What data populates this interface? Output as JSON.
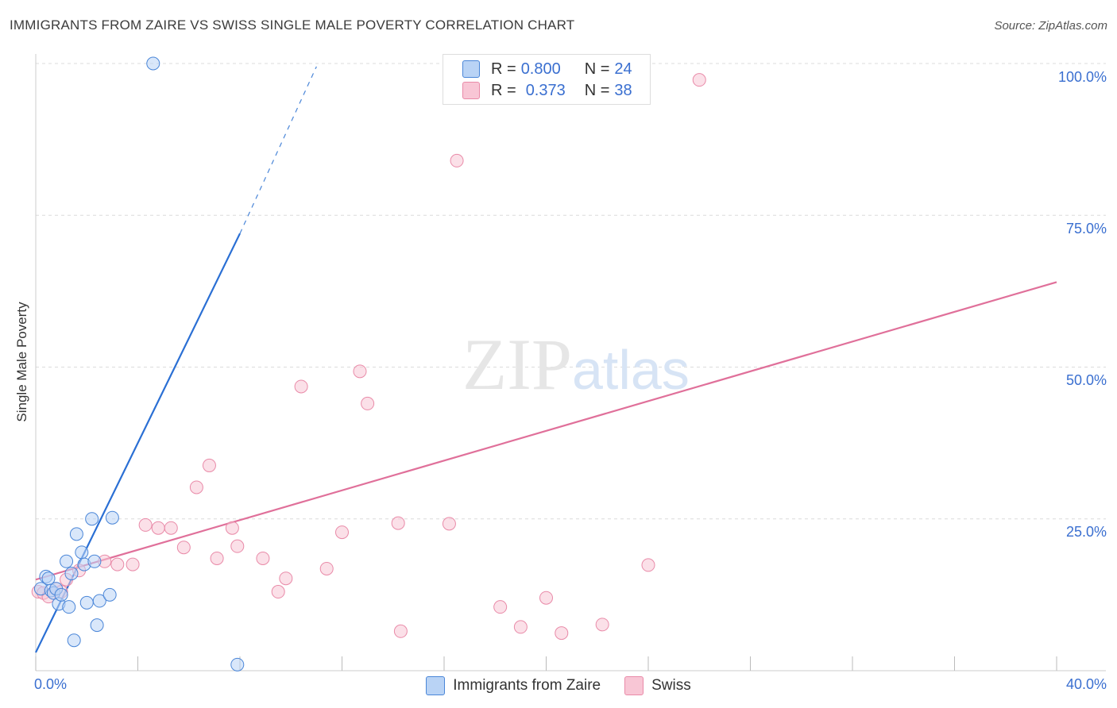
{
  "title": "IMMIGRANTS FROM ZAIRE VS SWISS SINGLE MALE POVERTY CORRELATION CHART",
  "source": "Source: ZipAtlas.com",
  "colors": {
    "blue": "#4a86d8",
    "blue_fill": "#b9d3f5",
    "blue_line": "#2a6fd4",
    "pink": "#e98aa8",
    "pink_fill": "#f8c6d5",
    "pink_line": "#e0709a",
    "axis_text": "#3a6fd0"
  },
  "legend": {
    "series1": {
      "r_label": "R = ",
      "r_value": "0.800",
      "n_label": "N = ",
      "n_value": "24"
    },
    "series2": {
      "r_label": "R = ",
      "r_value": "0.373",
      "n_label": "N = ",
      "n_value": "38"
    }
  },
  "bottom_legend": {
    "series1": "Immigrants from Zaire",
    "series2": "Swiss"
  },
  "watermark": {
    "part1": "ZIP",
    "part2": "atlas"
  },
  "chart_data": {
    "type": "scatter",
    "title": "IMMIGRANTS FROM ZAIRE VS SWISS SINGLE MALE POVERTY CORRELATION CHART",
    "xlabel": "",
    "ylabel": "Single Male Poverty",
    "xlim": [
      0,
      40
    ],
    "ylim": [
      0,
      100
    ],
    "x_tick_labels": [
      "0.0%",
      "40.0%"
    ],
    "y_tick_labels": [
      "100.0%",
      "75.0%",
      "50.0%",
      "25.0%"
    ],
    "y_ticks": [
      100,
      75,
      50,
      25
    ],
    "grid": true,
    "series": [
      {
        "name": "Immigrants from Zaire",
        "x": [
          0.2,
          0.4,
          0.5,
          0.6,
          0.7,
          0.8,
          0.9,
          1.0,
          1.2,
          1.3,
          1.4,
          1.5,
          1.6,
          1.8,
          1.9,
          2.0,
          2.2,
          2.3,
          2.4,
          2.5,
          2.9,
          3.0,
          4.6,
          7.9
        ],
        "y": [
          13.5,
          15.5,
          15.2,
          13.2,
          12.8,
          13.5,
          11.0,
          12.5,
          18.0,
          10.5,
          16.0,
          5.0,
          22.5,
          19.5,
          17.5,
          11.2,
          25.0,
          18.0,
          7.5,
          11.5,
          12.5,
          25.2,
          100.0,
          1.0
        ],
        "trend": {
          "x": [
            0.0,
            8.0
          ],
          "y": [
            3.0,
            72.0
          ],
          "dashed_to": {
            "x": 11.0,
            "y": 99.5
          }
        }
      },
      {
        "name": "Swiss",
        "x": [
          0.1,
          0.3,
          0.5,
          0.8,
          1.0,
          1.2,
          1.7,
          2.7,
          3.2,
          3.8,
          4.3,
          4.8,
          5.3,
          5.8,
          6.3,
          6.8,
          7.1,
          7.7,
          7.9,
          8.9,
          9.5,
          9.8,
          10.4,
          11.4,
          12.0,
          12.7,
          13.0,
          14.2,
          14.3,
          16.2,
          16.5,
          18.2,
          19.0,
          20.0,
          20.6,
          22.2,
          24.0,
          26.0
        ],
        "y": [
          13.0,
          12.8,
          12.2,
          13.5,
          13.0,
          15.0,
          16.5,
          18.0,
          17.5,
          17.5,
          24.0,
          23.5,
          23.5,
          20.3,
          30.2,
          33.8,
          18.5,
          23.5,
          20.5,
          18.5,
          13.0,
          15.2,
          46.8,
          16.8,
          22.8,
          49.3,
          44.0,
          24.3,
          6.5,
          24.2,
          84.0,
          10.5,
          7.2,
          12.0,
          6.2,
          7.6,
          17.4,
          97.3
        ],
        "trend": {
          "x": [
            0.0,
            40.0
          ],
          "y": [
            15.0,
            64.0
          ]
        }
      }
    ]
  }
}
